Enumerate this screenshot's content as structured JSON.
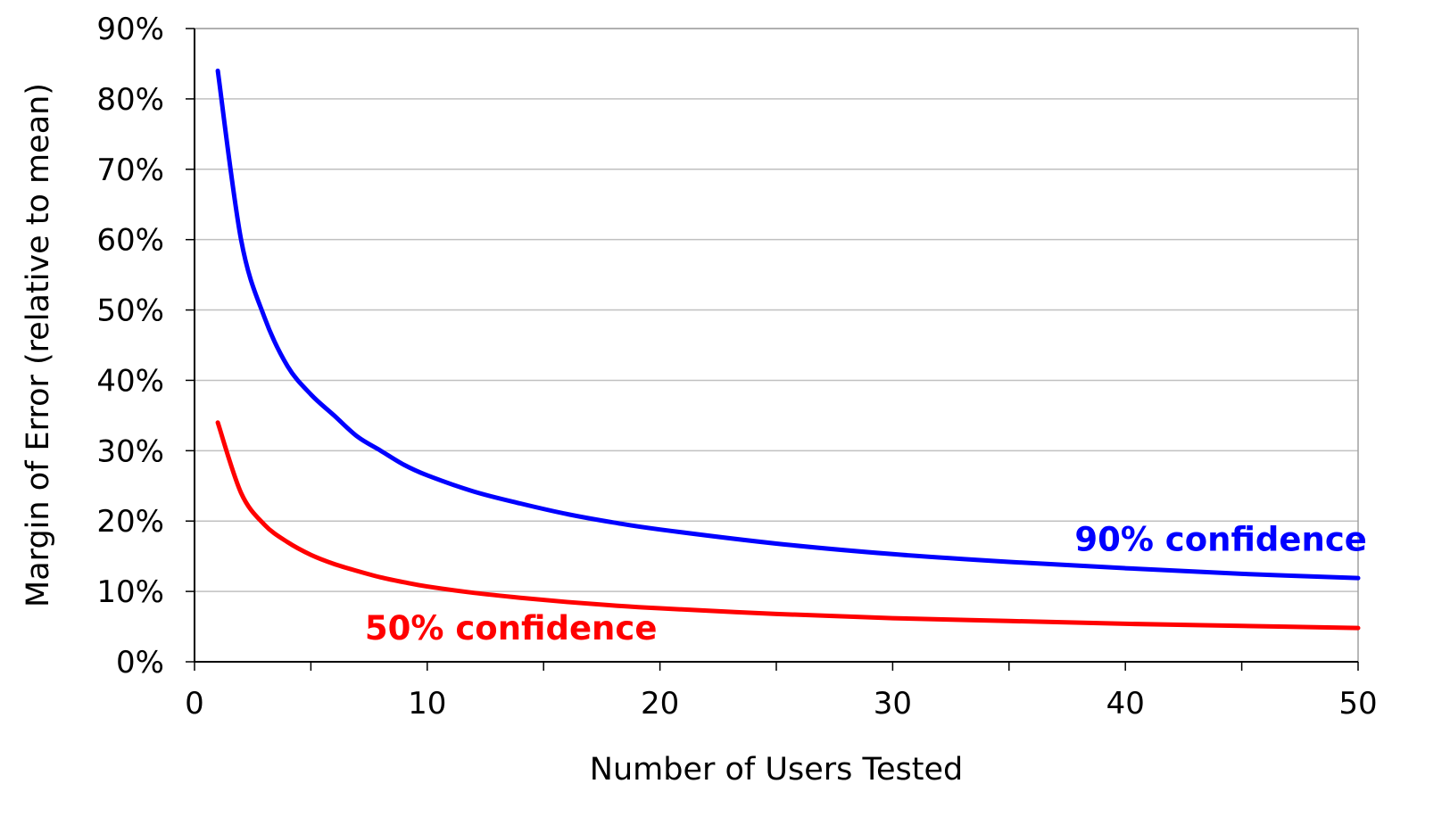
{
  "chart_data": {
    "type": "line",
    "title": "",
    "xlabel": "Number of Users Tested",
    "ylabel": "Margin of Error (relative to mean)",
    "xlim": [
      0,
      50
    ],
    "ylim": [
      0,
      90
    ],
    "x_ticks": [
      0,
      10,
      20,
      30,
      40,
      50
    ],
    "x_tick_labels": [
      "0",
      "10",
      "20",
      "30",
      "40",
      "50"
    ],
    "y_ticks": [
      0,
      10,
      20,
      30,
      40,
      50,
      60,
      70,
      80,
      90
    ],
    "y_tick_labels": [
      "0%",
      "10%",
      "20%",
      "30%",
      "40%",
      "50%",
      "60%",
      "70%",
      "80%",
      "90%"
    ],
    "grid": {
      "horizontal": true,
      "vertical": false
    },
    "legend": "none",
    "x": [
      1,
      2,
      3,
      4,
      5,
      6,
      7,
      8,
      9,
      10,
      12,
      14,
      16,
      18,
      20,
      25,
      30,
      35,
      40,
      45,
      50
    ],
    "series": [
      {
        "name": "90% confidence",
        "color": "#0000ff",
        "values": [
          84,
          60,
          49,
          42,
          38,
          35,
          32,
          30,
          28,
          26.5,
          24.2,
          22.5,
          21,
          19.8,
          18.8,
          16.8,
          15.3,
          14.2,
          13.3,
          12.5,
          11.9
        ]
      },
      {
        "name": "50% confidence",
        "color": "#ff0000",
        "values": [
          34,
          24,
          19.5,
          17,
          15.2,
          13.9,
          12.9,
          12,
          11.3,
          10.7,
          9.8,
          9.1,
          8.5,
          8,
          7.6,
          6.8,
          6.2,
          5.8,
          5.4,
          5.1,
          4.8
        ]
      }
    ]
  }
}
